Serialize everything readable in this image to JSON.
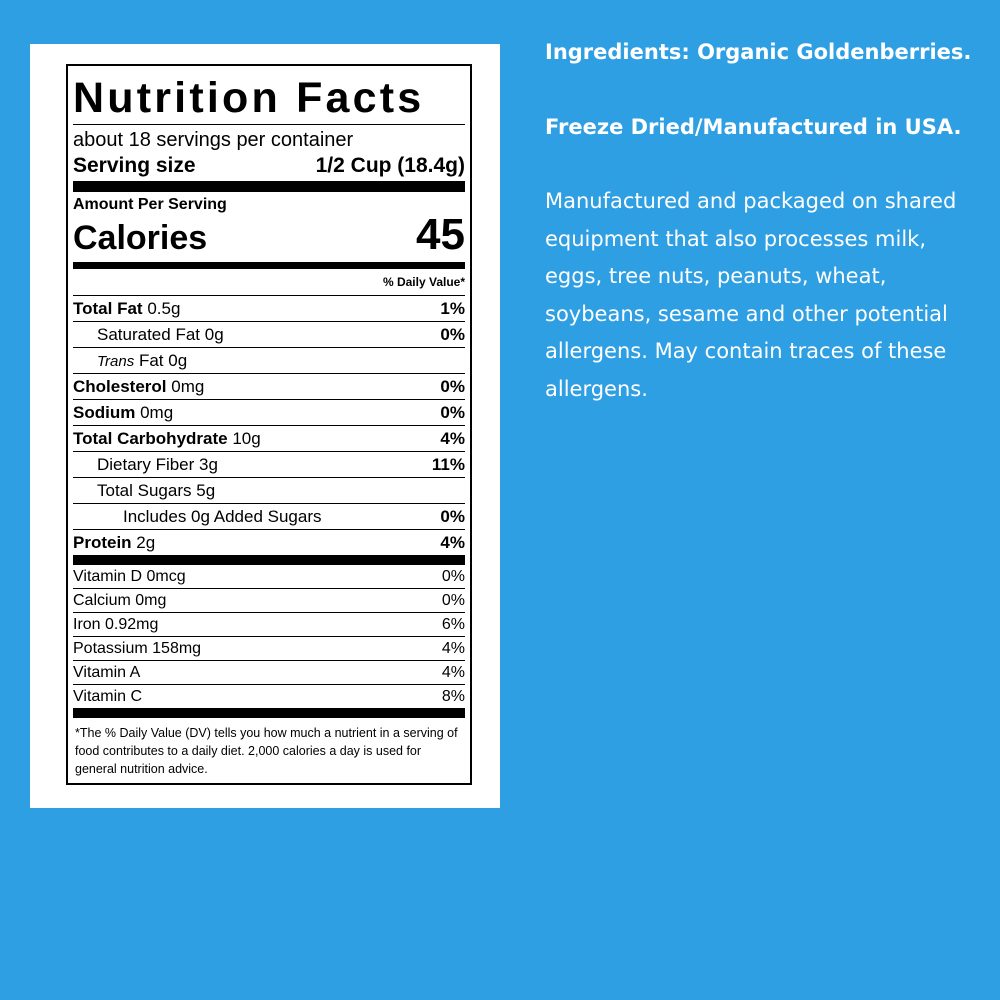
{
  "label": {
    "title": "Nutrition Facts",
    "servings": "about 18 servings per container",
    "serving_size_label": "Serving size",
    "serving_size": "1/2 Cup (18.4g)",
    "amount_per_serving": "Amount Per Serving",
    "calories_label": "Calories",
    "calories": "45",
    "dv_header": "% Daily Value*",
    "nutrients": [
      {
        "name": "Total Fat",
        "amount": "0.5g",
        "dv": "1%",
        "bold": true,
        "indent": 0
      },
      {
        "name": "Saturated Fat",
        "amount": "0g",
        "dv": "0%",
        "bold": false,
        "indent": 1
      },
      {
        "name_italic": "Trans",
        "name": "Fat",
        "amount": "0g",
        "bold": false,
        "indent": 1
      },
      {
        "name": "Cholesterol",
        "amount": "0mg",
        "dv": "0%",
        "bold": true,
        "indent": 0
      },
      {
        "name": "Sodium",
        "amount": "0mg",
        "dv": "0%",
        "bold": true,
        "indent": 0
      },
      {
        "name": "Total Carbohydrate",
        "amount": "10g",
        "dv": "4%",
        "bold": true,
        "indent": 0
      },
      {
        "name": "Dietary Fiber",
        "amount": "3g",
        "dv": "11%",
        "bold": false,
        "indent": 1
      },
      {
        "name": "Total Sugars",
        "amount": "5g",
        "bold": false,
        "indent": 1
      },
      {
        "name": "Includes 0g Added Sugars",
        "dv": "0%",
        "bold": false,
        "indent": 2
      },
      {
        "name": "Protein",
        "amount": "2g",
        "dv": "4%",
        "bold": true,
        "indent": 0
      }
    ],
    "vitamins": [
      {
        "name": "Vitamin D",
        "amount": "0mcg",
        "dv": "0%"
      },
      {
        "name": "Calcium",
        "amount": "0mg",
        "dv": "0%"
      },
      {
        "name": "Iron",
        "amount": "0.92mg",
        "dv": "6%"
      },
      {
        "name": "Potassium",
        "amount": "158mg",
        "dv": "4%"
      },
      {
        "name": "Vitamin A",
        "dv": "4%"
      },
      {
        "name": "Vitamin C",
        "dv": "8%"
      }
    ],
    "footnote": "*The % Daily Value (DV) tells you how much a nutrient in a serving of food contributes to a daily diet. 2,000 calories a day is used for general nutrition advice."
  },
  "info": {
    "ingredients": "Ingredients: Organic Goldenberries.",
    "origin": "Freeze Dried/Manufactured in USA.",
    "allergens": "Manufactured and packaged on shared equipment that also processes milk, eggs, tree nuts, peanuts, wheat, soybeans, sesame and other potential allergens. May contain traces of these allergens."
  }
}
